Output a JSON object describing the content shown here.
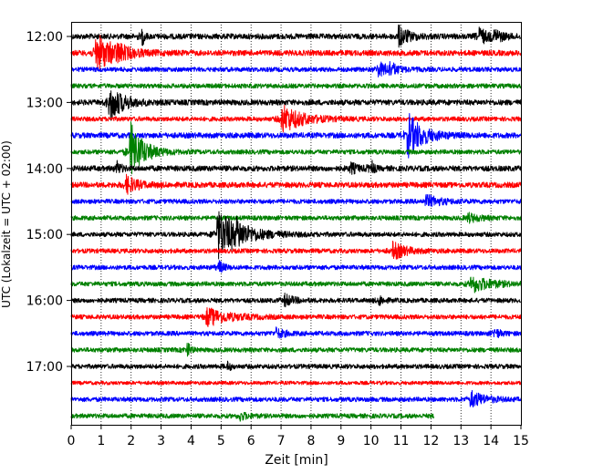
{
  "chart_data": {
    "type": "line",
    "xlabel": "Zeit  [min]",
    "ylabel": "UTC (Lokalzeit = UTC + 02:00)",
    "xlim": [
      0,
      15
    ],
    "x_ticks": [
      0,
      1,
      2,
      3,
      4,
      5,
      6,
      7,
      8,
      9,
      10,
      11,
      12,
      13,
      14,
      15
    ],
    "grid": "vertical dotted",
    "row_minutes": 15,
    "start_time": "12:00",
    "colors": {
      "black": "#000000",
      "red": "#ff0000",
      "blue": "#0000ff",
      "green": "#008000"
    },
    "color_cycle": [
      "black",
      "red",
      "blue",
      "green"
    ],
    "y_ticks": [
      {
        "label": "12:00",
        "row": 0
      },
      {
        "label": "13:00",
        "row": 4
      },
      {
        "label": "14:00",
        "row": 8
      },
      {
        "label": "15:00",
        "row": 12
      },
      {
        "label": "16:00",
        "row": 16
      },
      {
        "label": "17:00",
        "row": 20
      }
    ],
    "series": [
      {
        "start": "12:00",
        "color": "black",
        "noise": 3,
        "events": [
          {
            "t": 2.35,
            "amp": 14,
            "dur": 0.15
          },
          {
            "t": 10.9,
            "amp": 12,
            "dur": 0.7
          },
          {
            "t": 13.6,
            "amp": 11,
            "dur": 0.5
          },
          {
            "t": 14.1,
            "amp": 8,
            "dur": 0.5
          }
        ]
      },
      {
        "start": "12:15",
        "color": "red",
        "noise": 3,
        "events": [
          {
            "t": 0.8,
            "amp": 22,
            "dur": 1.3
          },
          {
            "t": 1.5,
            "amp": 6,
            "dur": 0.6
          }
        ]
      },
      {
        "start": "12:30",
        "color": "blue",
        "noise": 2.5,
        "events": [
          {
            "t": 10.2,
            "amp": 8,
            "dur": 0.9
          },
          {
            "t": 10.6,
            "amp": 7,
            "dur": 0.4
          }
        ]
      },
      {
        "start": "12:45",
        "color": "green",
        "noise": 2.5,
        "events": []
      },
      {
        "start": "13:00",
        "color": "black",
        "noise": 3,
        "events": [
          {
            "t": 1.25,
            "amp": 22,
            "dur": 0.9
          }
        ]
      },
      {
        "start": "13:15",
        "color": "red",
        "noise": 2.5,
        "events": [
          {
            "t": 7.0,
            "amp": 16,
            "dur": 1.4
          }
        ]
      },
      {
        "start": "13:30",
        "color": "blue",
        "noise": 3,
        "events": [
          {
            "t": 11.2,
            "amp": 26,
            "dur": 1.0
          }
        ]
      },
      {
        "start": "13:45",
        "color": "green",
        "noise": 2.5,
        "events": [
          {
            "t": 1.95,
            "amp": 34,
            "dur": 0.9
          }
        ]
      },
      {
        "start": "14:00",
        "color": "black",
        "noise": 3,
        "events": [
          {
            "t": 1.5,
            "amp": 8,
            "dur": 0.3
          },
          {
            "t": 10.0,
            "amp": 14,
            "dur": 0.15
          },
          {
            "t": 9.3,
            "amp": 6,
            "dur": 0.5
          }
        ]
      },
      {
        "start": "14:15",
        "color": "red",
        "noise": 3,
        "events": [
          {
            "t": 1.8,
            "amp": 10,
            "dur": 0.8
          }
        ]
      },
      {
        "start": "14:30",
        "color": "blue",
        "noise": 2.5,
        "events": [
          {
            "t": 11.8,
            "amp": 7,
            "dur": 1.0
          }
        ]
      },
      {
        "start": "14:45",
        "color": "green",
        "noise": 2.5,
        "events": [
          {
            "t": 13.2,
            "amp": 5,
            "dur": 0.8
          }
        ]
      },
      {
        "start": "15:00",
        "color": "black",
        "noise": 2.5,
        "events": [
          {
            "t": 4.85,
            "amp": 28,
            "dur": 1.6
          },
          {
            "t": 5.5,
            "amp": 8,
            "dur": 0.5
          }
        ]
      },
      {
        "start": "15:15",
        "color": "red",
        "noise": 2.5,
        "events": [
          {
            "t": 10.7,
            "amp": 10,
            "dur": 0.9
          }
        ]
      },
      {
        "start": "15:30",
        "color": "blue",
        "noise": 2.5,
        "events": [
          {
            "t": 4.9,
            "amp": 9,
            "dur": 0.3
          }
        ]
      },
      {
        "start": "15:45",
        "color": "green",
        "noise": 2.5,
        "events": [
          {
            "t": 13.3,
            "amp": 10,
            "dur": 1.3
          }
        ]
      },
      {
        "start": "16:00",
        "color": "black",
        "noise": 2.5,
        "events": [
          {
            "t": 7.1,
            "amp": 7,
            "dur": 0.6
          },
          {
            "t": 10.25,
            "amp": 7,
            "dur": 0.3
          }
        ]
      },
      {
        "start": "16:15",
        "color": "red",
        "noise": 2.5,
        "events": [
          {
            "t": 4.5,
            "amp": 10,
            "dur": 1.5
          }
        ]
      },
      {
        "start": "16:30",
        "color": "blue",
        "noise": 2.5,
        "events": [
          {
            "t": 6.8,
            "amp": 6,
            "dur": 0.6
          },
          {
            "t": 14.1,
            "amp": 6,
            "dur": 0.4
          }
        ]
      },
      {
        "start": "16:45",
        "color": "green",
        "noise": 2.5,
        "events": [
          {
            "t": 3.85,
            "amp": 12,
            "dur": 0.2
          }
        ]
      },
      {
        "start": "17:00",
        "color": "black",
        "noise": 2.5,
        "events": [
          {
            "t": 5.2,
            "amp": 7,
            "dur": 0.2
          }
        ]
      },
      {
        "start": "17:15",
        "color": "red",
        "noise": 2,
        "events": []
      },
      {
        "start": "17:30",
        "color": "blue",
        "noise": 2.5,
        "events": [
          {
            "t": 13.3,
            "amp": 9,
            "dur": 1.0
          }
        ]
      },
      {
        "start": "17:45",
        "color": "green",
        "noise": 2.5,
        "end": 12.1,
        "events": [
          {
            "t": 5.6,
            "amp": 5,
            "dur": 0.5
          }
        ]
      }
    ]
  }
}
